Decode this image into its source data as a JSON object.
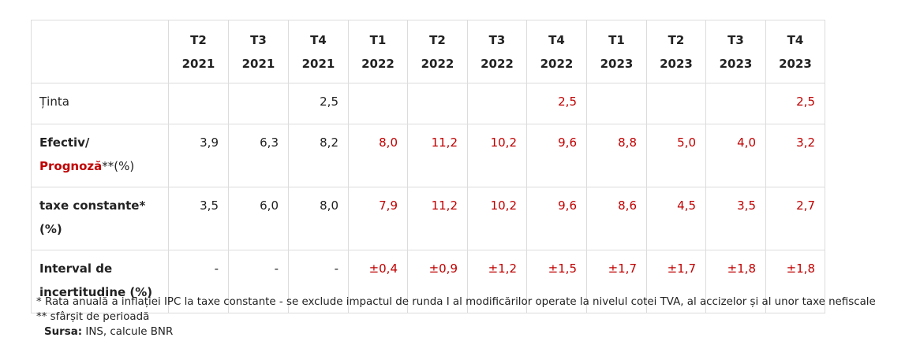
{
  "table": {
    "columns": [
      {
        "quarter": "T2",
        "year": "2021"
      },
      {
        "quarter": "T3",
        "year": "2021"
      },
      {
        "quarter": "T4",
        "year": "2021"
      },
      {
        "quarter": "T1",
        "year": "2022"
      },
      {
        "quarter": "T2",
        "year": "2022"
      },
      {
        "quarter": "T3",
        "year": "2022"
      },
      {
        "quarter": "T4",
        "year": "2022"
      },
      {
        "quarter": "T1",
        "year": "2023"
      },
      {
        "quarter": "T2",
        "year": "2023"
      },
      {
        "quarter": "T3",
        "year": "2023"
      },
      {
        "quarter": "T4",
        "year": "2023"
      }
    ],
    "rows": [
      {
        "key": "tinta",
        "label_line1": "Ținta",
        "label_line2": "",
        "label_line2_red": "",
        "label_line2_rest": "",
        "values": [
          "",
          "",
          "2,5",
          "",
          "",
          "",
          "2,5",
          "",
          "",
          "",
          "2,5"
        ]
      },
      {
        "key": "efectiv",
        "label_line1": "Efectiv/",
        "label_line2": "",
        "label_line2_red": "Prognoză",
        "label_line2_rest": "**(%)",
        "values": [
          "3,9",
          "6,3",
          "8,2",
          "8,0",
          "11,2",
          "10,2",
          "9,6",
          "8,8",
          "5,0",
          "4,0",
          "3,2"
        ]
      },
      {
        "key": "taxe",
        "label_line1": "taxe constante*",
        "label_line2": "(%)",
        "label_line2_red": "",
        "label_line2_rest": "",
        "values": [
          "3,5",
          "6,0",
          "8,0",
          "7,9",
          "11,2",
          "10,2",
          "9,6",
          "8,6",
          "4,5",
          "3,5",
          "2,7"
        ]
      },
      {
        "key": "interval",
        "label_line1": "Interval de",
        "label_line2": "incertitudine (%)",
        "label_line2_red": "",
        "label_line2_rest": "",
        "values": [
          "-",
          "-",
          "-",
          "±0,4",
          "±0,9",
          "±1,2",
          "±1,5",
          "±1,7",
          "±1,7",
          "±1,8",
          "±1,8"
        ]
      }
    ],
    "forecast_start_index": 3
  },
  "notes": {
    "note1": "* Rata anuală a inflației IPC la taxe constante - se exclude impactul de runda I al modificărilor operate la nivelul cotei TVA, al accizelor și al unor taxe nefiscale",
    "note2": "** sfârșit de perioadă",
    "source_label": "Sursa:",
    "source_text": " INS, calcule BNR"
  },
  "colors": {
    "forecast": "#c00000",
    "border": "#dcdcdc",
    "text": "#222222"
  }
}
